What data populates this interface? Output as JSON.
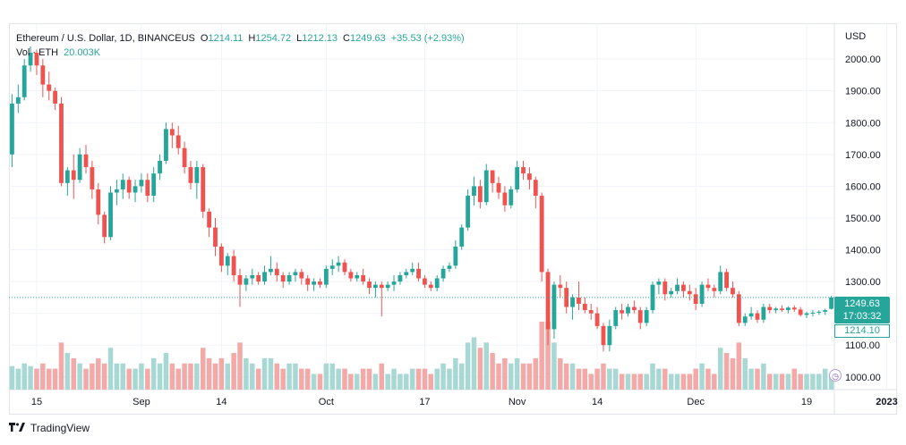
{
  "header": {
    "symbol_title": "Ethereum / U.S. Dollar, 1D, BINANCEUS",
    "o_label": "O",
    "o_value": "1214.11",
    "h_label": "H",
    "h_value": "1254.72",
    "l_label": "L",
    "l_value": "1212.13",
    "c_label": "C",
    "c_value": "1249.63",
    "change": "+35.53 (+2.93%)",
    "volume_label": "Vol · ETH",
    "volume_value": "20.003K"
  },
  "currency": "USD",
  "last_price": "1249.63",
  "countdown": "17:03:32",
  "open_price": "1214.10",
  "brand": "TradingView",
  "colors": {
    "up": "#26a69a",
    "down": "#ef5350",
    "vol_up": "#a7d8d4",
    "vol_down": "#f2a9a7",
    "grid": "#f0f3fa"
  },
  "chart_data": {
    "type": "candlestick",
    "title": "Ethereum / U.S. Dollar, 1D, BINANCEUS",
    "ylim": [
      960,
      2110
    ],
    "y_ticks": [
      1000,
      1100,
      1200,
      1300,
      1400,
      1500,
      1600,
      1700,
      1800,
      1900,
      2000
    ],
    "y_tick_labels": [
      "1000.00",
      "1100.00",
      "1200.00",
      "1300.00",
      "1400.00",
      "1500.00",
      "1600.00",
      "1700.00",
      "1800.00",
      "1900.00",
      "2000.00"
    ],
    "x_ticks": [
      {
        "index": 4,
        "label": "15"
      },
      {
        "index": 21,
        "label": "Sep"
      },
      {
        "index": 34,
        "label": "14"
      },
      {
        "index": 51,
        "label": "Oct"
      },
      {
        "index": 67,
        "label": "17"
      },
      {
        "index": 82,
        "label": "Nov"
      },
      {
        "index": 95,
        "label": "14"
      },
      {
        "index": 111,
        "label": "Dec"
      },
      {
        "index": 129,
        "label": "19"
      },
      {
        "index": 142,
        "label": "2023"
      }
    ],
    "candles": [
      [
        1700,
        1890,
        1660,
        1860,
        0.45
      ],
      [
        1860,
        1920,
        1830,
        1880,
        0.4
      ],
      [
        1880,
        2000,
        1870,
        1980,
        0.5
      ],
      [
        1980,
        2040,
        1960,
        2020,
        0.45
      ],
      [
        2020,
        2030,
        1950,
        1980,
        0.4
      ],
      [
        1980,
        2000,
        1880,
        1920,
        0.5
      ],
      [
        1920,
        1960,
        1870,
        1900,
        0.4
      ],
      [
        1900,
        1910,
        1840,
        1860,
        0.4
      ],
      [
        1860,
        1880,
        1600,
        1610,
        0.9
      ],
      [
        1610,
        1660,
        1570,
        1650,
        0.7
      ],
      [
        1650,
        1700,
        1560,
        1620,
        0.6
      ],
      [
        1620,
        1720,
        1610,
        1700,
        0.5
      ],
      [
        1700,
        1730,
        1640,
        1660,
        0.4
      ],
      [
        1660,
        1680,
        1560,
        1590,
        0.5
      ],
      [
        1590,
        1610,
        1480,
        1510,
        0.6
      ],
      [
        1510,
        1520,
        1420,
        1440,
        0.5
      ],
      [
        1440,
        1600,
        1430,
        1580,
        0.8
      ],
      [
        1580,
        1620,
        1540,
        1590,
        0.5
      ],
      [
        1590,
        1640,
        1560,
        1620,
        0.5
      ],
      [
        1620,
        1630,
        1560,
        1580,
        0.4
      ],
      [
        1580,
        1620,
        1550,
        1600,
        0.4
      ],
      [
        1600,
        1640,
        1580,
        1620,
        0.5
      ],
      [
        1620,
        1640,
        1550,
        1570,
        0.4
      ],
      [
        1570,
        1660,
        1550,
        1640,
        0.6
      ],
      [
        1640,
        1700,
        1620,
        1680,
        0.5
      ],
      [
        1680,
        1800,
        1670,
        1780,
        0.7
      ],
      [
        1780,
        1800,
        1720,
        1760,
        0.5
      ],
      [
        1760,
        1790,
        1700,
        1720,
        0.4
      ],
      [
        1720,
        1740,
        1640,
        1660,
        0.5
      ],
      [
        1660,
        1680,
        1590,
        1610,
        0.5
      ],
      [
        1610,
        1680,
        1560,
        1660,
        0.5
      ],
      [
        1660,
        1670,
        1500,
        1520,
        0.8
      ],
      [
        1520,
        1530,
        1440,
        1470,
        0.6
      ],
      [
        1470,
        1500,
        1380,
        1410,
        0.5
      ],
      [
        1410,
        1420,
        1330,
        1350,
        0.6
      ],
      [
        1350,
        1390,
        1320,
        1380,
        0.5
      ],
      [
        1380,
        1400,
        1300,
        1320,
        0.7
      ],
      [
        1320,
        1340,
        1220,
        1290,
        0.9
      ],
      [
        1290,
        1320,
        1270,
        1310,
        0.6
      ],
      [
        1310,
        1340,
        1290,
        1320,
        0.5
      ],
      [
        1320,
        1330,
        1290,
        1300,
        0.4
      ],
      [
        1300,
        1350,
        1290,
        1330,
        0.6
      ],
      [
        1330,
        1380,
        1320,
        1340,
        0.6
      ],
      [
        1340,
        1360,
        1300,
        1320,
        0.5
      ],
      [
        1320,
        1330,
        1280,
        1300,
        0.4
      ],
      [
        1300,
        1330,
        1290,
        1320,
        0.5
      ],
      [
        1320,
        1340,
        1300,
        1330,
        0.5
      ],
      [
        1330,
        1340,
        1290,
        1310,
        0.4
      ],
      [
        1310,
        1320,
        1270,
        1290,
        0.4
      ],
      [
        1290,
        1310,
        1270,
        1300,
        0.3
      ],
      [
        1300,
        1310,
        1280,
        1290,
        0.3
      ],
      [
        1290,
        1350,
        1280,
        1340,
        0.5
      ],
      [
        1340,
        1370,
        1320,
        1350,
        0.5
      ],
      [
        1350,
        1380,
        1330,
        1360,
        0.4
      ],
      [
        1360,
        1370,
        1320,
        1330,
        0.4
      ],
      [
        1330,
        1340,
        1300,
        1310,
        0.3
      ],
      [
        1310,
        1330,
        1300,
        1320,
        0.3
      ],
      [
        1320,
        1340,
        1290,
        1300,
        0.4
      ],
      [
        1300,
        1310,
        1260,
        1280,
        0.4
      ],
      [
        1280,
        1300,
        1250,
        1290,
        0.3
      ],
      [
        1290,
        1300,
        1190,
        1280,
        0.5
      ],
      [
        1280,
        1300,
        1270,
        1290,
        0.3
      ],
      [
        1290,
        1320,
        1270,
        1300,
        0.4
      ],
      [
        1300,
        1330,
        1290,
        1320,
        0.3
      ],
      [
        1320,
        1340,
        1310,
        1330,
        0.3
      ],
      [
        1330,
        1360,
        1320,
        1340,
        0.4
      ],
      [
        1340,
        1360,
        1300,
        1310,
        0.4
      ],
      [
        1310,
        1320,
        1280,
        1290,
        0.4
      ],
      [
        1290,
        1300,
        1270,
        1280,
        0.3
      ],
      [
        1280,
        1320,
        1270,
        1310,
        0.4
      ],
      [
        1310,
        1350,
        1300,
        1340,
        0.5
      ],
      [
        1340,
        1360,
        1330,
        1350,
        0.4
      ],
      [
        1350,
        1430,
        1340,
        1410,
        0.6
      ],
      [
        1410,
        1480,
        1400,
        1470,
        0.5
      ],
      [
        1470,
        1590,
        1460,
        1570,
        0.9
      ],
      [
        1570,
        1630,
        1540,
        1600,
        1.0
      ],
      [
        1600,
        1620,
        1530,
        1550,
        0.8
      ],
      [
        1550,
        1670,
        1540,
        1650,
        0.9
      ],
      [
        1650,
        1650,
        1580,
        1610,
        0.7
      ],
      [
        1610,
        1630,
        1560,
        1580,
        0.5
      ],
      [
        1580,
        1600,
        1520,
        1540,
        0.6
      ],
      [
        1540,
        1600,
        1530,
        1590,
        0.5
      ],
      [
        1590,
        1680,
        1580,
        1660,
        0.6
      ],
      [
        1660,
        1680,
        1620,
        1640,
        0.5
      ],
      [
        1640,
        1660,
        1590,
        1620,
        0.5
      ],
      [
        1620,
        1630,
        1530,
        1570,
        0.6
      ],
      [
        1570,
        1580,
        1300,
        1330,
        1.35
      ],
      [
        1330,
        1340,
        1100,
        1150,
        1.3
      ],
      [
        1150,
        1300,
        1120,
        1290,
        0.9
      ],
      [
        1290,
        1320,
        1250,
        1280,
        0.6
      ],
      [
        1280,
        1300,
        1200,
        1220,
        0.5
      ],
      [
        1220,
        1260,
        1180,
        1250,
        0.5
      ],
      [
        1250,
        1300,
        1210,
        1230,
        0.4
      ],
      [
        1230,
        1250,
        1200,
        1210,
        0.4
      ],
      [
        1210,
        1230,
        1180,
        1200,
        0.3
      ],
      [
        1200,
        1220,
        1150,
        1160,
        0.4
      ],
      [
        1160,
        1170,
        1080,
        1100,
        0.5
      ],
      [
        1100,
        1180,
        1080,
        1160,
        0.4
      ],
      [
        1160,
        1220,
        1150,
        1210,
        0.4
      ],
      [
        1210,
        1230,
        1180,
        1200,
        0.3
      ],
      [
        1200,
        1230,
        1190,
        1220,
        0.3
      ],
      [
        1220,
        1240,
        1200,
        1210,
        0.3
      ],
      [
        1210,
        1220,
        1150,
        1170,
        0.3
      ],
      [
        1170,
        1220,
        1160,
        1210,
        0.3
      ],
      [
        1210,
        1300,
        1200,
        1290,
        0.5
      ],
      [
        1290,
        1310,
        1260,
        1300,
        0.4
      ],
      [
        1300,
        1310,
        1240,
        1260,
        0.4
      ],
      [
        1260,
        1280,
        1250,
        1270,
        0.3
      ],
      [
        1270,
        1310,
        1260,
        1290,
        0.3
      ],
      [
        1290,
        1300,
        1250,
        1270,
        0.3
      ],
      [
        1270,
        1290,
        1240,
        1260,
        0.3
      ],
      [
        1260,
        1280,
        1210,
        1230,
        0.4
      ],
      [
        1230,
        1300,
        1220,
        1290,
        0.5
      ],
      [
        1290,
        1310,
        1270,
        1280,
        0.4
      ],
      [
        1280,
        1290,
        1250,
        1270,
        0.3
      ],
      [
        1270,
        1350,
        1260,
        1330,
        0.8
      ],
      [
        1330,
        1340,
        1270,
        1280,
        0.7
      ],
      [
        1280,
        1300,
        1250,
        1260,
        0.6
      ],
      [
        1260,
        1270,
        1160,
        1170,
        0.9
      ],
      [
        1170,
        1200,
        1160,
        1190,
        0.6
      ],
      [
        1190,
        1220,
        1180,
        1200,
        0.4
      ],
      [
        1200,
        1210,
        1170,
        1180,
        0.4
      ],
      [
        1180,
        1230,
        1170,
        1220,
        0.5
      ],
      [
        1220,
        1230,
        1200,
        1210,
        0.3
      ],
      [
        1210,
        1220,
        1200,
        1215,
        0.3
      ],
      [
        1215,
        1225,
        1205,
        1210,
        0.3
      ],
      [
        1210,
        1222,
        1200,
        1218,
        0.3
      ],
      [
        1218,
        1225,
        1205,
        1212,
        0.4
      ],
      [
        1212,
        1220,
        1190,
        1195,
        0.3
      ],
      [
        1195,
        1205,
        1185,
        1200,
        0.3
      ],
      [
        1200,
        1210,
        1190,
        1202,
        0.3
      ],
      [
        1202,
        1210,
        1195,
        1205,
        0.3
      ],
      [
        1205,
        1215,
        1195,
        1210,
        0.4
      ],
      [
        1214,
        1255,
        1212,
        1250,
        0.3
      ]
    ]
  }
}
